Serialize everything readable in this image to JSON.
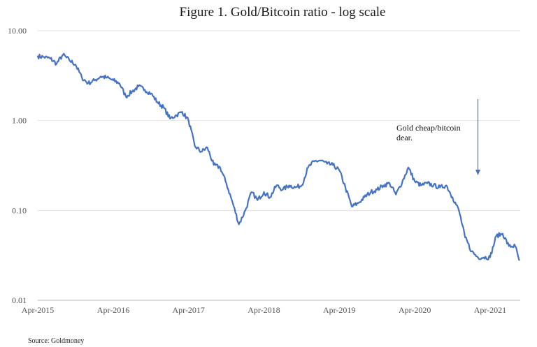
{
  "chart_data": {
    "type": "line",
    "title": "Figure 1. Gold/Bitcoin ratio - log scale",
    "scale": "log",
    "ylim": [
      0.01,
      10
    ],
    "y_ticks": [
      "10.00",
      "1.00",
      "0.10",
      "0.01"
    ],
    "x_ticks": [
      "Apr-2015",
      "Apr-2016",
      "Apr-2017",
      "Apr-2018",
      "Apr-2019",
      "Apr-2020",
      "Apr-2021"
    ],
    "xlim": [
      "2015-04",
      "2021-08"
    ],
    "grid": "horizontal",
    "legend": "none",
    "line_color": "#4472c4",
    "series": [
      {
        "values": [
          [
            "2015-04-01",
            5.2
          ],
          [
            "2015-05-01",
            5.1
          ],
          [
            "2015-06-01",
            4.9
          ],
          [
            "2015-07-01",
            4.3
          ],
          [
            "2015-08-01",
            5.4
          ],
          [
            "2015-09-01",
            4.7
          ],
          [
            "2015-10-01",
            4.2
          ],
          [
            "2015-11-01",
            3.0
          ],
          [
            "2015-12-01",
            2.6
          ],
          [
            "2016-01-01",
            2.8
          ],
          [
            "2016-02-01",
            3.1
          ],
          [
            "2016-03-01",
            3.0
          ],
          [
            "2016-04-01",
            2.8
          ],
          [
            "2016-05-01",
            2.6
          ],
          [
            "2016-06-01",
            1.85
          ],
          [
            "2016-07-01",
            2.1
          ],
          [
            "2016-08-01",
            2.4
          ],
          [
            "2016-09-01",
            2.2
          ],
          [
            "2016-10-01",
            2.0
          ],
          [
            "2016-11-01",
            1.6
          ],
          [
            "2016-12-01",
            1.4
          ],
          [
            "2017-01-01",
            1.05
          ],
          [
            "2017-02-01",
            1.15
          ],
          [
            "2017-03-01",
            1.25
          ],
          [
            "2017-04-01",
            1.0
          ],
          [
            "2017-05-01",
            0.52
          ],
          [
            "2017-06-01",
            0.45
          ],
          [
            "2017-07-01",
            0.5
          ],
          [
            "2017-08-01",
            0.32
          ],
          [
            "2017-09-01",
            0.3
          ],
          [
            "2017-10-01",
            0.2
          ],
          [
            "2017-11-01",
            0.12
          ],
          [
            "2017-12-01",
            0.07
          ],
          [
            "2018-01-01",
            0.1
          ],
          [
            "2018-02-01",
            0.16
          ],
          [
            "2018-03-01",
            0.13
          ],
          [
            "2018-04-01",
            0.16
          ],
          [
            "2018-05-01",
            0.14
          ],
          [
            "2018-06-01",
            0.19
          ],
          [
            "2018-07-01",
            0.17
          ],
          [
            "2018-08-01",
            0.19
          ],
          [
            "2018-09-01",
            0.18
          ],
          [
            "2018-10-01",
            0.19
          ],
          [
            "2018-11-01",
            0.3
          ],
          [
            "2018-12-01",
            0.35
          ],
          [
            "2019-01-01",
            0.36
          ],
          [
            "2019-02-01",
            0.33
          ],
          [
            "2019-03-01",
            0.32
          ],
          [
            "2019-04-01",
            0.28
          ],
          [
            "2019-05-01",
            0.18
          ],
          [
            "2019-06-01",
            0.11
          ],
          [
            "2019-07-01",
            0.12
          ],
          [
            "2019-08-01",
            0.14
          ],
          [
            "2019-09-01",
            0.16
          ],
          [
            "2019-10-01",
            0.17
          ],
          [
            "2019-11-01",
            0.19
          ],
          [
            "2019-12-01",
            0.2
          ],
          [
            "2020-01-01",
            0.15
          ],
          [
            "2020-02-01",
            0.21
          ],
          [
            "2020-03-01",
            0.3
          ],
          [
            "2020-04-01",
            0.21
          ],
          [
            "2020-05-01",
            0.19
          ],
          [
            "2020-06-01",
            0.2
          ],
          [
            "2020-07-01",
            0.19
          ],
          [
            "2020-08-01",
            0.18
          ],
          [
            "2020-09-01",
            0.19
          ],
          [
            "2020-10-01",
            0.14
          ],
          [
            "2020-11-01",
            0.1
          ],
          [
            "2020-12-01",
            0.05
          ],
          [
            "2021-01-01",
            0.035
          ],
          [
            "2021-02-01",
            0.03
          ],
          [
            "2021-03-01",
            0.03
          ],
          [
            "2021-04-01",
            0.03
          ],
          [
            "2021-05-01",
            0.052
          ],
          [
            "2021-06-01",
            0.055
          ],
          [
            "2021-07-01",
            0.04
          ],
          [
            "2021-08-01",
            0.04
          ],
          [
            "2021-08-20",
            0.028
          ]
        ]
      }
    ],
    "annotation": {
      "text_line1": "Gold cheap/bitcoin",
      "text_line2": "dear.",
      "arrow_at": "2021-02-01"
    },
    "source": "Source: Goldmoney"
  }
}
